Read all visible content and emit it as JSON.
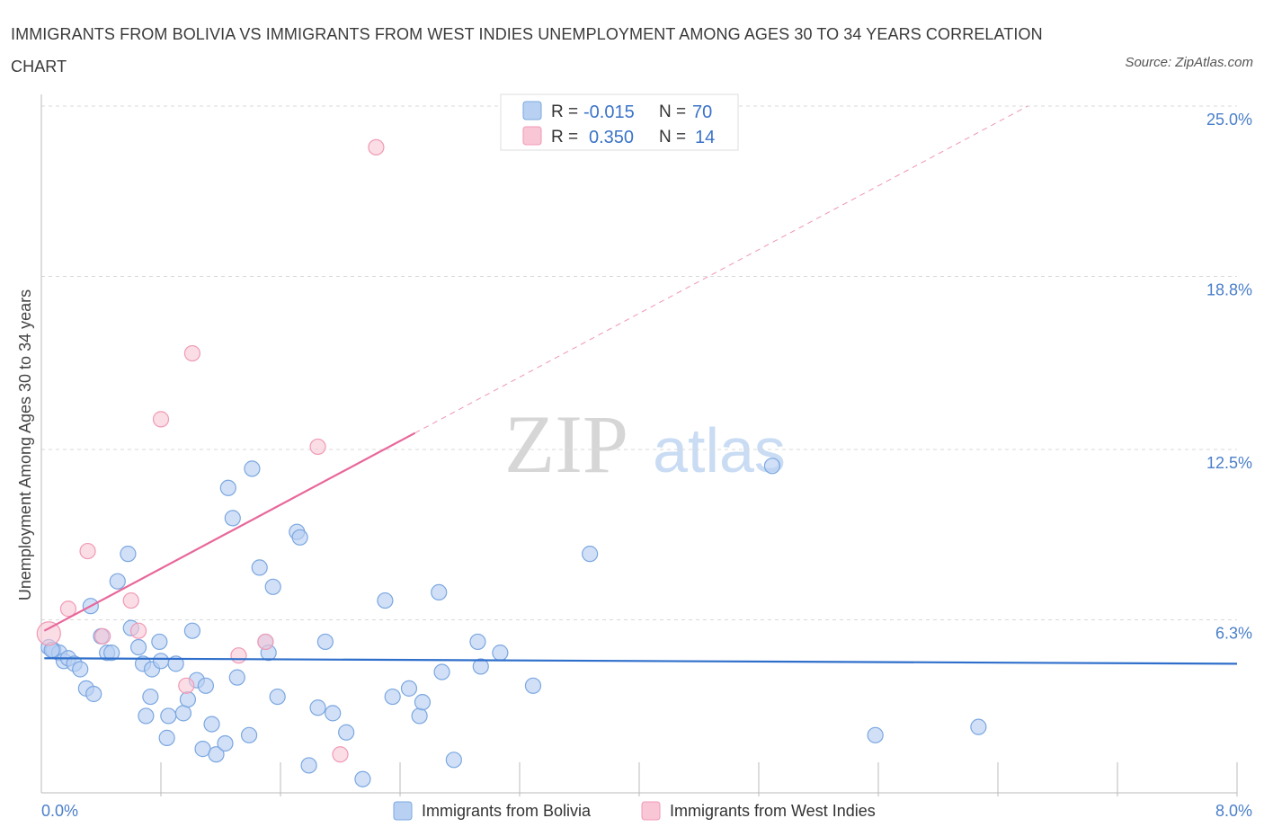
{
  "title": "IMMIGRANTS FROM BOLIVIA VS IMMIGRANTS FROM WEST INDIES UNEMPLOYMENT AMONG AGES 30 TO 34 YEARS CORRELATION CHART",
  "source": "Source: ZipAtlas.com",
  "watermark": {
    "zip": "ZIP",
    "atlas": "atlas"
  },
  "colors": {
    "bolivia_fill": "#b8d0f2",
    "bolivia_stroke": "#7ba7e0",
    "bolivia_line": "#2f6fcb",
    "wi_fill": "#f9c6d6",
    "wi_stroke": "#f09ab5",
    "wi_line": "#e8679a",
    "grid": "#d9d9d9",
    "tick_label": "#4a7fc9"
  },
  "chart_data": {
    "type": "scatter",
    "xlabel": "",
    "ylabel": "Unemployment Among Ages 30 to 34 years",
    "xlim": [
      0,
      8.0
    ],
    "ylim": [
      0,
      25.0
    ],
    "x_tick_labels": [
      "0.0%",
      "8.0%"
    ],
    "y_tick_values": [
      6.3,
      12.5,
      18.8,
      25.0
    ],
    "y_tick_labels": [
      "6.3%",
      "12.5%",
      "18.8%",
      "25.0%"
    ],
    "legend_stats": [
      {
        "r_label": "R =",
        "r_value": "-0.015",
        "n_label": "N =",
        "n_value": "70"
      },
      {
        "r_label": "R =",
        "r_value": "0.350",
        "n_label": "N =",
        "n_value": "14"
      }
    ],
    "series": [
      {
        "name": "Immigrants from Bolivia",
        "trend": {
          "x": [
            0.02,
            8.0
          ],
          "y": [
            4.9,
            4.7
          ]
        },
        "points": [
          {
            "x": 0.05,
            "y": 5.3
          },
          {
            "x": 0.08,
            "y": 5.2
          },
          {
            "x": 0.12,
            "y": 5.1
          },
          {
            "x": 0.15,
            "y": 4.8
          },
          {
            "x": 0.18,
            "y": 4.9
          },
          {
            "x": 0.22,
            "y": 4.7
          },
          {
            "x": 0.26,
            "y": 4.5
          },
          {
            "x": 0.3,
            "y": 3.8
          },
          {
            "x": 0.35,
            "y": 3.6
          },
          {
            "x": 0.33,
            "y": 6.8
          },
          {
            "x": 0.4,
            "y": 5.7
          },
          {
            "x": 0.44,
            "y": 5.1
          },
          {
            "x": 0.47,
            "y": 5.1
          },
          {
            "x": 0.51,
            "y": 7.7
          },
          {
            "x": 0.6,
            "y": 6.0
          },
          {
            "x": 0.58,
            "y": 8.7
          },
          {
            "x": 0.65,
            "y": 5.3
          },
          {
            "x": 0.68,
            "y": 4.7
          },
          {
            "x": 0.7,
            "y": 2.8
          },
          {
            "x": 0.73,
            "y": 3.5
          },
          {
            "x": 0.74,
            "y": 4.5
          },
          {
            "x": 0.79,
            "y": 5.5
          },
          {
            "x": 0.8,
            "y": 4.8
          },
          {
            "x": 0.84,
            "y": 2.0
          },
          {
            "x": 0.85,
            "y": 2.8
          },
          {
            "x": 0.9,
            "y": 4.7
          },
          {
            "x": 0.95,
            "y": 2.9
          },
          {
            "x": 0.98,
            "y": 3.4
          },
          {
            "x": 1.01,
            "y": 5.9
          },
          {
            "x": 1.04,
            "y": 4.1
          },
          {
            "x": 1.08,
            "y": 1.6
          },
          {
            "x": 1.1,
            "y": 3.9
          },
          {
            "x": 1.14,
            "y": 2.5
          },
          {
            "x": 1.17,
            "y": 1.4
          },
          {
            "x": 1.23,
            "y": 1.8
          },
          {
            "x": 1.25,
            "y": 11.1
          },
          {
            "x": 1.28,
            "y": 10.0
          },
          {
            "x": 1.31,
            "y": 4.2
          },
          {
            "x": 1.39,
            "y": 2.1
          },
          {
            "x": 1.41,
            "y": 11.8
          },
          {
            "x": 1.46,
            "y": 8.2
          },
          {
            "x": 1.5,
            "y": 5.5
          },
          {
            "x": 1.52,
            "y": 5.1
          },
          {
            "x": 1.55,
            "y": 7.5
          },
          {
            "x": 1.58,
            "y": 3.5
          },
          {
            "x": 1.71,
            "y": 9.5
          },
          {
            "x": 1.73,
            "y": 9.3
          },
          {
            "x": 1.79,
            "y": 1.0
          },
          {
            "x": 1.85,
            "y": 3.1
          },
          {
            "x": 1.9,
            "y": 5.5
          },
          {
            "x": 1.95,
            "y": 2.9
          },
          {
            "x": 2.04,
            "y": 2.2
          },
          {
            "x": 2.15,
            "y": 0.5
          },
          {
            "x": 2.3,
            "y": 7.0
          },
          {
            "x": 2.35,
            "y": 3.5
          },
          {
            "x": 2.46,
            "y": 3.8
          },
          {
            "x": 2.53,
            "y": 2.8
          },
          {
            "x": 2.55,
            "y": 3.3
          },
          {
            "x": 2.66,
            "y": 7.3
          },
          {
            "x": 2.68,
            "y": 4.4
          },
          {
            "x": 2.76,
            "y": 1.2
          },
          {
            "x": 2.92,
            "y": 5.5
          },
          {
            "x": 2.94,
            "y": 4.6
          },
          {
            "x": 3.07,
            "y": 5.1
          },
          {
            "x": 3.29,
            "y": 3.9
          },
          {
            "x": 3.67,
            "y": 8.7
          },
          {
            "x": 4.89,
            "y": 11.9
          },
          {
            "x": 5.58,
            "y": 2.1
          },
          {
            "x": 6.27,
            "y": 2.4
          },
          {
            "x": 0.07,
            "y": 5.2
          }
        ]
      },
      {
        "name": "Immigrants from West Indies",
        "trend": {
          "x": [
            0.02,
            2.5
          ],
          "y": [
            5.9,
            13.1
          ]
        },
        "trend_dashed": {
          "x": [
            2.5,
            6.6
          ],
          "y": [
            13.1,
            25.0
          ]
        },
        "points": [
          {
            "x": 0.05,
            "y": 5.8
          },
          {
            "x": 0.18,
            "y": 6.7
          },
          {
            "x": 0.31,
            "y": 8.8
          },
          {
            "x": 0.41,
            "y": 5.7
          },
          {
            "x": 0.6,
            "y": 7.0
          },
          {
            "x": 0.65,
            "y": 5.9
          },
          {
            "x": 0.8,
            "y": 13.6
          },
          {
            "x": 0.97,
            "y": 3.9
          },
          {
            "x": 1.01,
            "y": 16.0
          },
          {
            "x": 1.32,
            "y": 5.0
          },
          {
            "x": 1.5,
            "y": 5.5
          },
          {
            "x": 1.85,
            "y": 12.6
          },
          {
            "x": 2.0,
            "y": 1.4
          },
          {
            "x": 2.24,
            "y": 23.5
          }
        ]
      }
    ]
  }
}
